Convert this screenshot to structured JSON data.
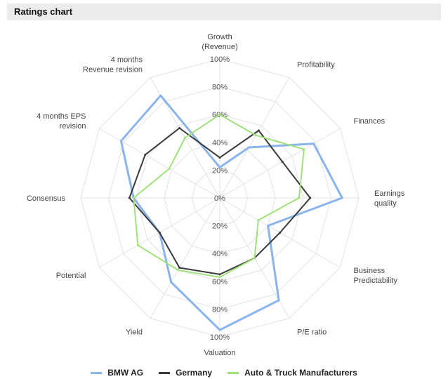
{
  "header": {
    "title": "Ratings chart"
  },
  "colors": {
    "bmw": "#8ab4ea",
    "germany": "#3a3a3a",
    "auto": "#a0e27a",
    "grid": "#e3e3e3"
  },
  "chart_data": {
    "type": "radar",
    "title": "Ratings chart",
    "categories": [
      "Growth (Revenue)",
      "Profitability",
      "Finances",
      "Earnings quality",
      "Business Predictability",
      "P/E ratio",
      "Valuation",
      "Yield",
      "Potential",
      "Consensus",
      "4 months EPS revision",
      "4 months Revenue revision"
    ],
    "category_lines": [
      [
        "Growth",
        "(Revenue)"
      ],
      [
        "Profitability"
      ],
      [
        "Finances"
      ],
      [
        "Earnings",
        "quality"
      ],
      [
        "Business",
        "Predictability"
      ],
      [
        "P/E ratio"
      ],
      [
        "Valuation"
      ],
      [
        "Yield"
      ],
      [
        "Potential"
      ],
      [
        "Consensus"
      ],
      [
        "4 months EPS",
        "revision"
      ],
      [
        "4 months",
        "Revenue revision"
      ]
    ],
    "tick_labels": [
      "0%",
      "20%",
      "40%",
      "60%",
      "80%",
      "100%"
    ],
    "range": [
      0,
      100
    ],
    "series": [
      {
        "name": "BMW AG",
        "color": "#8ab4ea",
        "values": [
          22,
          42,
          78,
          88,
          40,
          85,
          95,
          70,
          50,
          62,
          82,
          85
        ]
      },
      {
        "name": "Germany",
        "color": "#3a3a3a",
        "values": [
          29,
          56,
          52,
          65,
          50,
          50,
          55,
          58,
          50,
          65,
          62,
          58
        ]
      },
      {
        "name": "Auto & Truck Manufacturers",
        "color": "#a0e27a",
        "values": [
          60,
          52,
          70,
          57,
          32,
          50,
          57,
          60,
          68,
          62,
          42,
          50
        ]
      }
    ],
    "legend_position": "bottom"
  }
}
